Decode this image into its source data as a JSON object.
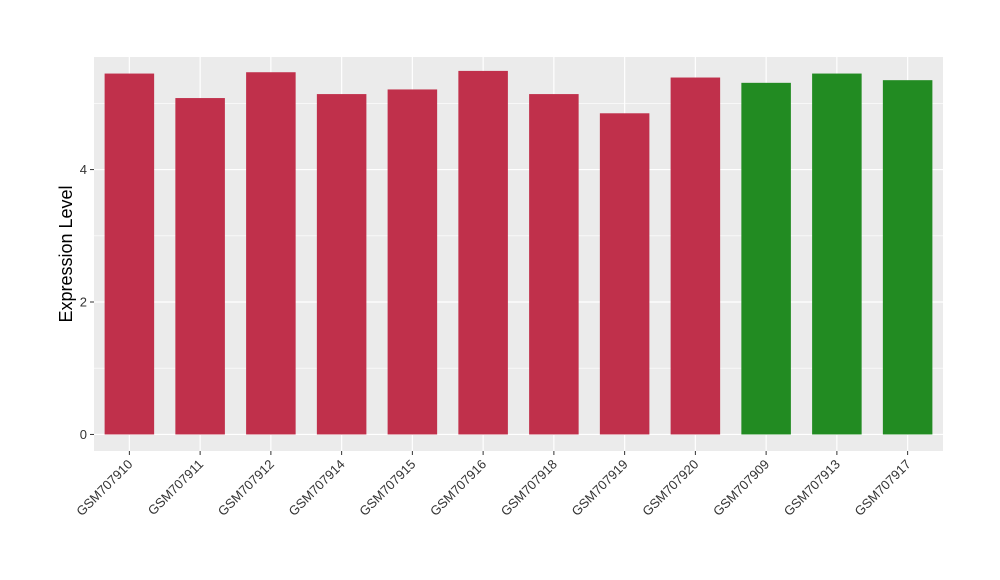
{
  "chart_data": {
    "type": "bar",
    "title": "",
    "xlabel": "",
    "ylabel": "Expression Level",
    "ylim": [
      -0.25,
      5.7
    ],
    "yticks": [
      0,
      2,
      4
    ],
    "grid": true,
    "legend": "none",
    "categories": [
      "GSM707910",
      "GSM707911",
      "GSM707912",
      "GSM707914",
      "GSM707915",
      "GSM707916",
      "GSM707918",
      "GSM707919",
      "GSM707920",
      "GSM707909",
      "GSM707913",
      "GSM707917"
    ],
    "values": [
      5.45,
      5.08,
      5.47,
      5.14,
      5.21,
      5.49,
      5.14,
      4.85,
      5.39,
      5.31,
      5.45,
      5.35
    ],
    "bar_colors": [
      "#c0304b",
      "#c0304b",
      "#c0304b",
      "#c0304b",
      "#c0304b",
      "#c0304b",
      "#c0304b",
      "#c0304b",
      "#c0304b",
      "#228b22",
      "#228b22",
      "#228b22"
    ],
    "panel_background": "#ebebeb",
    "grid_color": "#ffffff"
  }
}
